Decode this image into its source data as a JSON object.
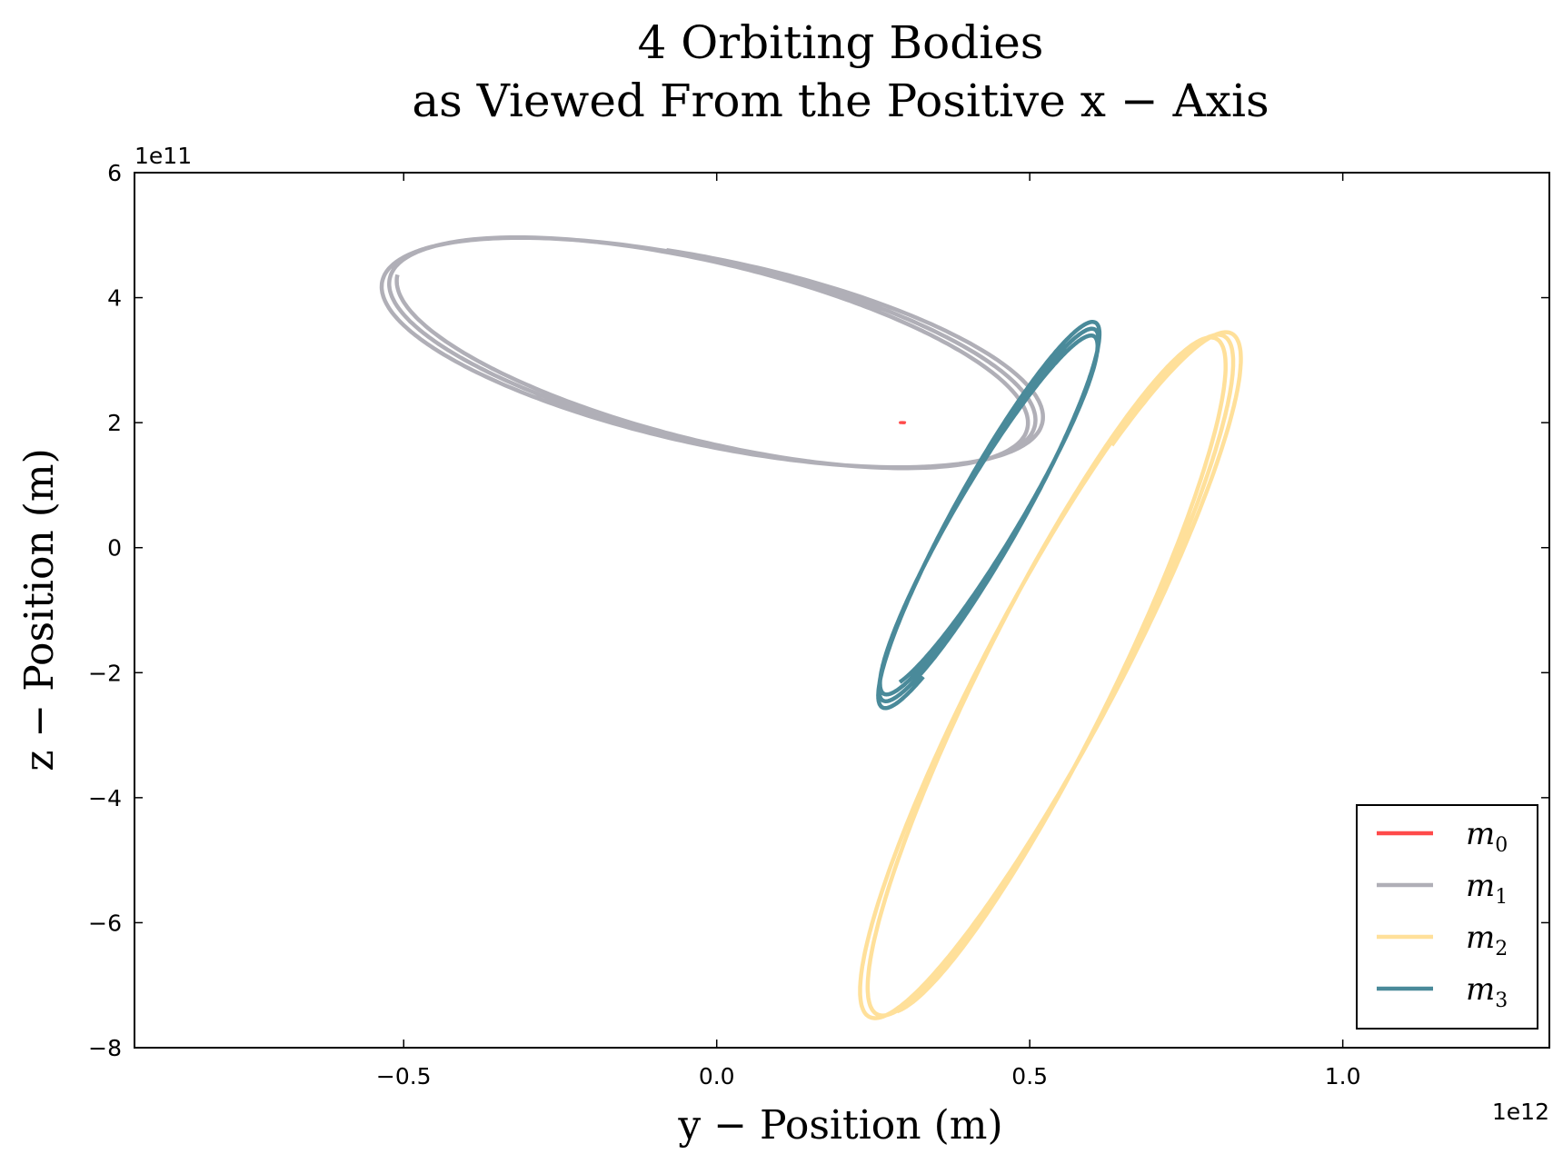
{
  "chart_data": {
    "type": "line",
    "title": [
      "4 Orbiting Bodies",
      "as Viewed From the Positive x − Axis"
    ],
    "xlabel": "y − Position (m)",
    "ylabel": "z − Position (m)",
    "xlim": [
      -930000000000.0,
      1330000000000.0
    ],
    "ylim": [
      -800000000000.0,
      600000000000.0
    ],
    "x_offset_label": "1e12",
    "y_offset_label": "1e11",
    "x_ticks": [
      {
        "value": -500000000000.0,
        "label": "−0.5"
      },
      {
        "value": 0,
        "label": "0.0"
      },
      {
        "value": 500000000000.0,
        "label": "0.5"
      },
      {
        "value": 1000000000000.0,
        "label": "1.0"
      }
    ],
    "y_ticks": [
      {
        "value": 600000000000.0,
        "label": "6"
      },
      {
        "value": 400000000000.0,
        "label": "4"
      },
      {
        "value": 200000000000.0,
        "label": "2"
      },
      {
        "value": 0,
        "label": "0"
      },
      {
        "value": -200000000000.0,
        "label": "−2"
      },
      {
        "value": -400000000000.0,
        "label": "−4"
      },
      {
        "value": -600000000000.0,
        "label": "−6"
      },
      {
        "value": -800000000000.0,
        "label": "−8"
      }
    ],
    "grid": false,
    "legend_position": "bottom-right",
    "series": [
      {
        "name": "m",
        "sub": "0",
        "color": "#ff4a4a",
        "orbit": {
          "cx": 297000000000.0,
          "cy": 200000000000.0,
          "rx": 4000000000.0,
          "ry": 300000000.0,
          "angle_deg": 0,
          "turns": 1.0,
          "start_deg": 0,
          "growth": 0
        }
      },
      {
        "name": "m",
        "sub": "1",
        "color": "#b0afb7",
        "orbit": {
          "cx": -10000000000.0,
          "cy": 312000000000.0,
          "rx": 530000000000.0,
          "ry": 145000000000.0,
          "angle_deg": -14,
          "turns": 2.78,
          "start_deg": 180,
          "growth": 0.028
        }
      },
      {
        "name": "m",
        "sub": "2",
        "color": "#ffe09a",
        "orbit": {
          "cx": 530000000000.0,
          "cy": -205000000000.0,
          "rx": 610000000000.0,
          "ry": 105000000000.0,
          "angle_deg": 64,
          "turns": 2.62,
          "start_deg": 190,
          "growth": 0.02
        }
      },
      {
        "name": "m",
        "sub": "3",
        "color": "#4a8a9a",
        "orbit": {
          "cx": 435000000000.0,
          "cy": 55000000000.0,
          "rx": 340000000000.0,
          "ry": 52000000000.0,
          "angle_deg": 59,
          "turns": 3.05,
          "start_deg": 200,
          "growth": 0.045
        }
      }
    ]
  }
}
